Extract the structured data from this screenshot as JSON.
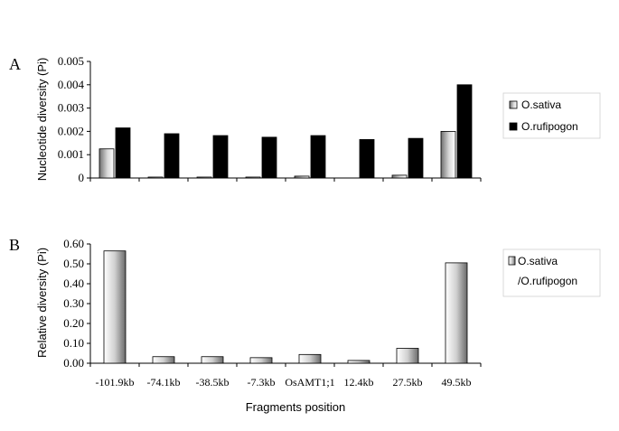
{
  "chart_data": [
    {
      "panel_label": "A",
      "type": "bar",
      "ylabel": "Nucleotide diversity (Pi)",
      "ylim": [
        0,
        0.005
      ],
      "yticks": [
        "0",
        "0.001",
        "0.002",
        "0.003",
        "0.004",
        "0.005"
      ],
      "categories": [
        "-101.9kb",
        "-74.1kb",
        "-38.5kb",
        "-7.3kb",
        "OsAMT1;1",
        "12.4kb",
        "27.5kb",
        "49.5kb"
      ],
      "series": [
        {
          "name": "O.sativa",
          "values": [
            0.00125,
            4e-05,
            4e-05,
            4e-05,
            8e-05,
            0.0,
            0.00012,
            0.002
          ],
          "color": "gradient-white-gray"
        },
        {
          "name": "O.rufipogon",
          "values": [
            0.00215,
            0.0019,
            0.00182,
            0.00175,
            0.00182,
            0.00165,
            0.0017,
            0.004
          ],
          "color": "#000000"
        }
      ],
      "legend_position": "top-right",
      "grid": false
    },
    {
      "panel_label": "B",
      "type": "bar",
      "ylabel": "Relative diversity (Pi)",
      "xlabel": "Fragments position",
      "ylim": [
        0,
        0.6
      ],
      "yticks": [
        "0.00",
        "0.10",
        "0.20",
        "0.30",
        "0.40",
        "0.50",
        "0.60"
      ],
      "categories": [
        "-101.9kb",
        "-74.1kb",
        "-38.5kb",
        "-7.3kb",
        "OsAMT1;1",
        "12.4kb",
        "27.5kb",
        "49.5kb"
      ],
      "series": [
        {
          "name": "O.sativa\n/O.rufipogon",
          "values": [
            0.565,
            0.033,
            0.033,
            0.028,
            0.044,
            0.014,
            0.075,
            0.505
          ],
          "color": "gradient-gray"
        }
      ],
      "legend_position": "top-right",
      "grid": false
    }
  ]
}
